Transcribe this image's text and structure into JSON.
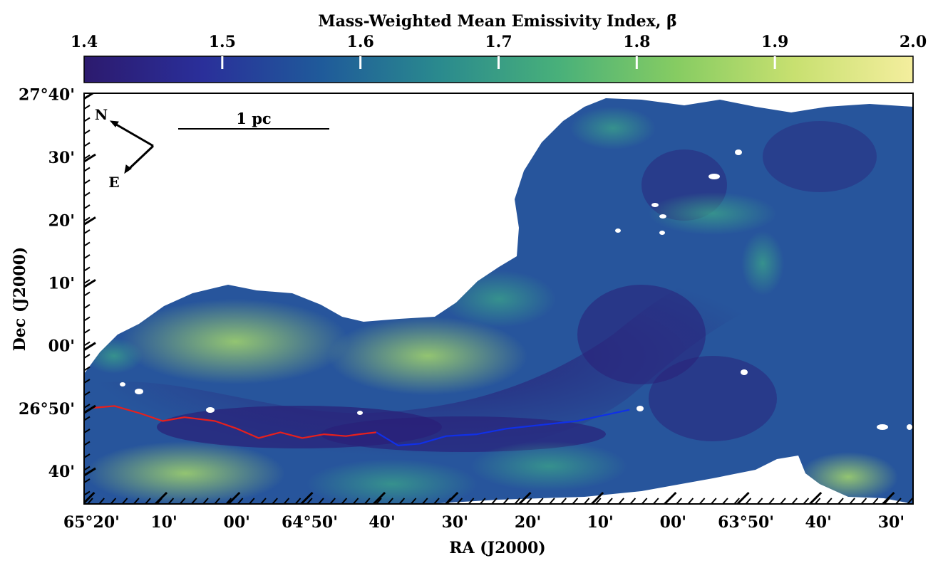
{
  "chart_data": {
    "type": "heatmap",
    "title": "Mass-Weighted Mean Emissivity Index, β̄",
    "colorbar": {
      "label": "Mass-Weighted Mean Emissivity Index, β̄",
      "min": 1.4,
      "max": 2.0,
      "ticks": [
        "1.4",
        "1.5",
        "1.6",
        "1.7",
        "1.8",
        "1.9",
        "2.0"
      ],
      "tick_values": [
        1.4,
        1.5,
        1.6,
        1.7,
        1.8,
        1.9,
        2.0
      ],
      "colormap": [
        "#2c1a6e",
        "#2a2f9a",
        "#1f5a9a",
        "#2a8a8e",
        "#48b07a",
        "#86cc62",
        "#c8e070",
        "#f4ee9e"
      ]
    },
    "xlabel": "RA (J2000)",
    "ylabel": "Dec (J2000)",
    "x_ticks": [
      "65°20'",
      "10'",
      "00'",
      "64°50'",
      "40'",
      "30'",
      "20'",
      "10'",
      "00'",
      "63°50'",
      "40'",
      "30'"
    ],
    "x_tick_values_deg": [
      65.333,
      65.167,
      65.0,
      64.833,
      64.667,
      64.5,
      64.333,
      64.167,
      64.0,
      63.833,
      63.667,
      63.5
    ],
    "xlim_deg": [
      65.35,
      63.45
    ],
    "y_ticks": [
      "27°40'",
      "30'",
      "20'",
      "10'",
      "00'",
      "26°50'",
      "40'"
    ],
    "y_tick_values_deg": [
      27.667,
      27.5,
      27.333,
      27.167,
      27.0,
      26.833,
      26.667
    ],
    "ylim_deg": [
      26.58,
      27.67
    ],
    "scale_bar": "1 pc",
    "compass": {
      "north": "N",
      "east": "E"
    },
    "filament_spines": [
      {
        "name": "red-spine",
        "color": "#e8201c",
        "ra_deg": [
          65.33,
          65.28,
          65.22,
          65.17,
          65.12,
          65.05,
          65.0,
          64.95,
          64.9,
          64.85,
          64.8,
          64.75,
          64.72,
          64.68
        ],
        "dec_deg": [
          26.835,
          26.84,
          26.82,
          26.8,
          26.81,
          26.8,
          26.78,
          26.755,
          26.77,
          26.755,
          26.765,
          26.76,
          26.765,
          26.77
        ]
      },
      {
        "name": "blue-spine",
        "color": "#1030e8",
        "ra_deg": [
          64.68,
          64.63,
          64.58,
          64.52,
          64.45,
          64.38,
          64.3,
          64.22,
          64.16,
          64.1
        ],
        "dec_deg": [
          26.77,
          26.735,
          26.74,
          26.76,
          26.765,
          26.78,
          26.79,
          26.8,
          26.815,
          26.83
        ]
      }
    ]
  }
}
